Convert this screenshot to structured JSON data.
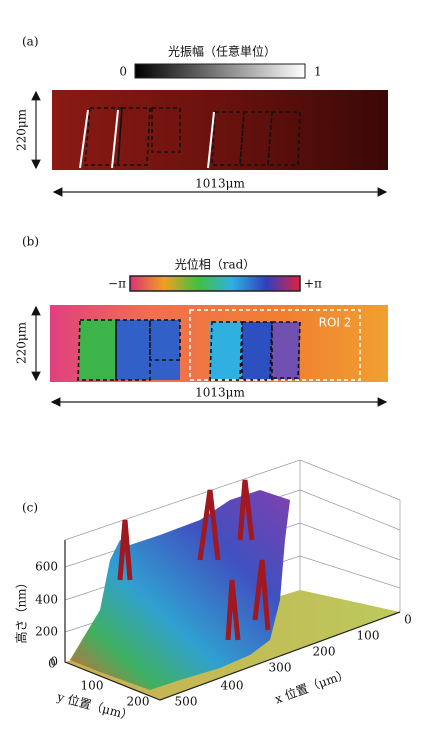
{
  "panel_a": {
    "label": "(a)",
    "colorbar_title": "光振幅（任意単位）",
    "colorbar_min": "0",
    "colorbar_max": "1",
    "height_label": "220μm",
    "width_label": "1013μm"
  },
  "panel_b": {
    "label": "(b)",
    "colorbar_title": "光位相（rad）",
    "colorbar_min": "−π",
    "colorbar_max": "+π",
    "height_label": "220μm",
    "width_label": "1013μm",
    "roi_label": "ROI 2"
  },
  "panel_c": {
    "label": "(c)",
    "z_axis_label": "高さ（nm）",
    "z_ticks": [
      0,
      200,
      400,
      600
    ],
    "y_axis_label": "y 位置（μm）",
    "y_ticks": [
      0,
      100,
      200
    ],
    "x_axis_label": "x 位置（μm）",
    "x_ticks": [
      0,
      100,
      200,
      300,
      400,
      500
    ]
  }
}
